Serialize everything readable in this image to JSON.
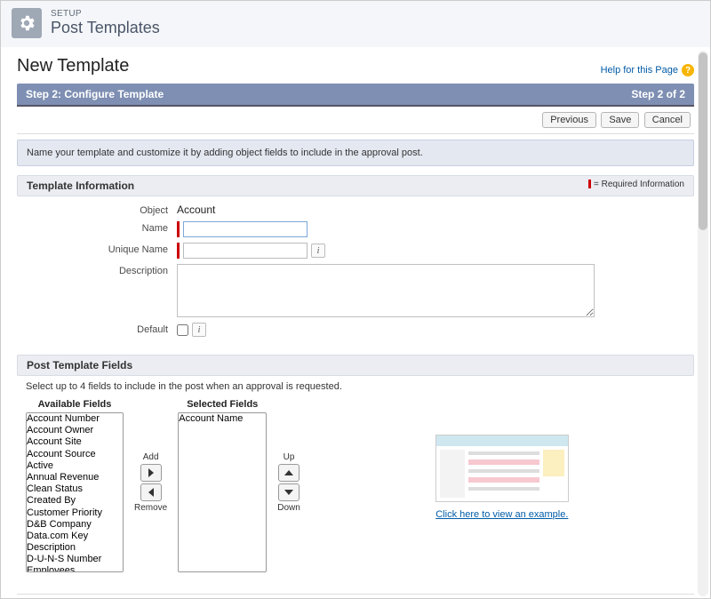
{
  "header": {
    "eyebrow": "SETUP",
    "title": "Post Templates"
  },
  "page": {
    "title": "New Template",
    "help_label": "Help for this Page"
  },
  "step": {
    "label": "Step 2: Configure Template",
    "progress": "Step 2 of 2"
  },
  "buttons": {
    "previous": "Previous",
    "save": "Save",
    "cancel": "Cancel"
  },
  "instruction": "Name your template and customize it by adding object fields to include in the approval post.",
  "sections": {
    "template_info": "Template Information",
    "required_note": "= Required Information",
    "post_fields": "Post Template Fields"
  },
  "form": {
    "object_label": "Object",
    "object_value": "Account",
    "name_label": "Name",
    "name_value": "",
    "unique_label": "Unique Name",
    "unique_value": "",
    "description_label": "Description",
    "description_value": "",
    "default_label": "Default"
  },
  "fields": {
    "instruction": "Select up to 4 fields to include in the post when an approval is requested.",
    "available_title": "Available Fields",
    "selected_title": "Selected Fields",
    "add": "Add",
    "remove": "Remove",
    "up": "Up",
    "down": "Down",
    "available": [
      "Account Number",
      "Account Owner",
      "Account Site",
      "Account Source",
      "Active",
      "Annual Revenue",
      "Clean Status",
      "Created By",
      "Customer Priority",
      "D&B Company",
      "Data.com Key",
      "Description",
      "D-U-N-S Number",
      "Employees"
    ],
    "selected": [
      "Account Name"
    ]
  },
  "example": {
    "link": "Click here to view an example."
  },
  "colors": {
    "step_bar": "#7e8fb3",
    "section_bg": "#ebedf2",
    "instruction_bg": "#e4e8f1",
    "required": "#c00000",
    "link": "#015ba7"
  }
}
